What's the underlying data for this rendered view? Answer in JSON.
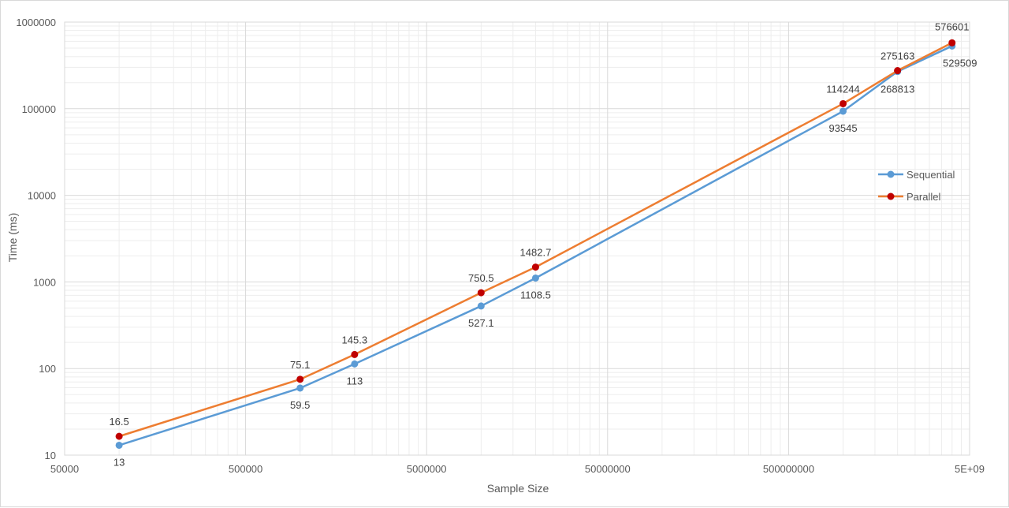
{
  "chart_data": {
    "type": "line",
    "title": "",
    "xlabel": "Sample Size",
    "ylabel": "Time (ms)",
    "x_scale": "log",
    "y_scale": "log",
    "xlim": [
      50000,
      5000000000
    ],
    "ylim": [
      10,
      1000000
    ],
    "x_tick_labels": [
      "50000",
      "500000",
      "5000000",
      "50000000",
      "500000000",
      "5E+09"
    ],
    "y_tick_labels": [
      "10",
      "100",
      "1000",
      "10000",
      "100000",
      "1000000"
    ],
    "grid": "major and minor",
    "legend_position": "right",
    "colors": {
      "Sequential": "#5b9bd5",
      "Parallel": "#ed7d31",
      "Parallel_marker": "#c00000"
    },
    "series": [
      {
        "name": "Sequential",
        "x": [
          100000,
          1000000,
          2000000,
          10000000,
          20000000,
          1000000000,
          2000000000,
          4000000000
        ],
        "values": [
          13,
          59.5,
          113,
          527.1,
          1108.5,
          93545,
          268813,
          529509
        ],
        "labels": [
          "13",
          "59.5",
          "113",
          "527.1",
          "1108.5",
          "93545",
          "268813",
          "529509"
        ]
      },
      {
        "name": "Parallel",
        "x": [
          100000,
          1000000,
          2000000,
          10000000,
          20000000,
          1000000000,
          2000000000,
          4000000000
        ],
        "values": [
          16.5,
          75.1,
          145.3,
          750.5,
          1482.7,
          114244,
          275163,
          576601
        ],
        "labels": [
          "16.5",
          "75.1",
          "145.3",
          "750.5",
          "1482.7",
          "114244",
          "275163",
          "576601"
        ]
      }
    ]
  }
}
